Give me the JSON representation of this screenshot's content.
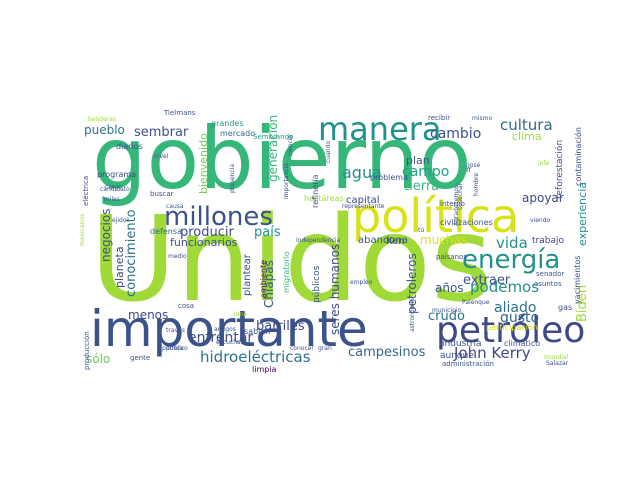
{
  "cloud": {
    "palette": [
      "#440154",
      "#482878",
      "#3e4989",
      "#31688e",
      "#26828e",
      "#1f9e89",
      "#35b779",
      "#6ece58",
      "#b5de2b",
      "#fde725"
    ],
    "words": [
      {
        "text": "Unidos",
        "color": "#a0da39"
      },
      {
        "text": "gobierno",
        "color": "#35b779"
      },
      {
        "text": "importante",
        "color": "#3b528b"
      },
      {
        "text": "política",
        "color": "#d8e219"
      },
      {
        "text": "petróleo",
        "color": "#3e4989"
      },
      {
        "text": "manera",
        "color": "#21918c"
      },
      {
        "text": "millones",
        "color": "#3b528b"
      },
      {
        "text": "energía",
        "color": "#21918c"
      },
      {
        "text": "hidroeléctricas",
        "color": "#2c728e"
      },
      {
        "text": "John Kerry",
        "color": "#3e4989"
      },
      {
        "text": "cultura",
        "color": "#31688e"
      },
      {
        "text": "cambio",
        "color": "#3b528b"
      },
      {
        "text": "agua",
        "color": "#21918c"
      },
      {
        "text": "campo",
        "color": "#1f9e89"
      },
      {
        "text": "tierra",
        "color": "#35b779"
      },
      {
        "text": "podemos",
        "color": "#21918c"
      },
      {
        "text": "aliado",
        "color": "#2c728e"
      },
      {
        "text": "vida",
        "color": "#21918c"
      },
      {
        "text": "gusto",
        "color": "#31688e"
      },
      {
        "text": "crudo",
        "color": "#2c728e"
      },
      {
        "text": "enfrentar",
        "color": "#3b528b"
      },
      {
        "text": "barriles",
        "color": "#3e4989"
      },
      {
        "text": "campesinos",
        "color": "#31688e"
      },
      {
        "text": "sembrar",
        "color": "#3b528b"
      },
      {
        "text": "pueblo",
        "color": "#2c728e"
      },
      {
        "text": "producir",
        "color": "#3e4989"
      },
      {
        "text": "país",
        "color": "#21918c"
      },
      {
        "text": "menos",
        "color": "#3e4989"
      },
      {
        "text": "sólo",
        "color": "#6ece58"
      },
      {
        "text": "funcionarios",
        "color": "#3b528b"
      },
      {
        "text": "negocios",
        "color": "#3b528b"
      },
      {
        "text": "conocimiento",
        "color": "#2c728e"
      },
      {
        "text": "generación",
        "color": "#35b779"
      },
      {
        "text": "bienvenido",
        "color": "#6ece58"
      },
      {
        "text": "seres humanos",
        "color": "#3e4989"
      },
      {
        "text": "petroleros",
        "color": "#3b528b"
      },
      {
        "text": "muchas",
        "color": "#d8e219"
      },
      {
        "text": "extraer",
        "color": "#3b528b"
      },
      {
        "text": "años",
        "color": "#3b528b"
      },
      {
        "text": "apoyar",
        "color": "#3e4989"
      },
      {
        "text": "Biden",
        "color": "#a0da39"
      },
      {
        "text": "experiencia",
        "color": "#21918c"
      },
      {
        "text": "Chiapas",
        "color": "#3b528b"
      },
      {
        "text": "planeta",
        "color": "#3e4989"
      },
      {
        "text": "clima",
        "color": "#a0da39"
      },
      {
        "text": "plan",
        "color": "#3b528b"
      },
      {
        "text": "abandona",
        "color": "#3b528b"
      },
      {
        "text": "capital",
        "color": "#3e4989"
      },
      {
        "text": "trabajo",
        "color": "#3e4989"
      },
      {
        "text": "Ken",
        "color": "#3e4989"
      },
      {
        "text": "plantear",
        "color": "#3e4989"
      },
      {
        "text": "ambiente",
        "color": "#440154"
      },
      {
        "text": "públicos",
        "color": "#3b528b"
      },
      {
        "text": "mercado",
        "color": "#31688e"
      },
      {
        "text": "defensa",
        "color": "#31688e"
      },
      {
        "text": "diarios",
        "color": "#3b528b"
      },
      {
        "text": "grandes",
        "color": "#21918c"
      },
      {
        "text": "Tielmans",
        "color": "#3b528b"
      },
      {
        "text": "Sembrando",
        "color": "#1f9e89"
      },
      {
        "text": "hectáreas",
        "color": "#a0da39"
      },
      {
        "text": "migratorio",
        "color": "#35b779"
      },
      {
        "text": "reforestación",
        "color": "#3b528b"
      },
      {
        "text": "contaminación",
        "color": "#3e4989"
      },
      {
        "text": "industria",
        "color": "#3b528b"
      },
      {
        "text": "aunque",
        "color": "#3e4989"
      },
      {
        "text": "climático",
        "color": "#3b528b"
      },
      {
        "text": "senador",
        "color": "#3b528b"
      },
      {
        "text": "yacimientos",
        "color": "#3b528b"
      },
      {
        "text": "participación",
        "color": "#d8e219"
      },
      {
        "text": "Palenque",
        "color": "#3e4989"
      },
      {
        "text": "administración",
        "color": "#3b528b"
      },
      {
        "text": "mundial",
        "color": "#a0da39"
      },
      {
        "text": "Salazar",
        "color": "#3b528b"
      },
      {
        "text": "civilizaciones",
        "color": "#3b528b"
      },
      {
        "text": "paisanos",
        "color": "#3b528b"
      },
      {
        "text": "gente",
        "color": "#3b528b"
      },
      {
        "text": "limpia",
        "color": "#440154"
      },
      {
        "text": "amigos",
        "color": "#3b528b"
      },
      {
        "text": "producción",
        "color": "#3b528b"
      },
      {
        "text": "empleo",
        "color": "#3b528b"
      },
      {
        "text": "sabían",
        "color": "#3b528b"
      },
      {
        "text": "cosa",
        "color": "#3b528b"
      },
      {
        "text": "escuchar",
        "color": "#3b528b"
      },
      {
        "text": "representante",
        "color": "#3b528b"
      },
      {
        "text": "problema",
        "color": "#3b528b"
      },
      {
        "text": "interno",
        "color": "#3b528b"
      },
      {
        "text": "mismo",
        "color": "#3b528b"
      },
      {
        "text": "recibir",
        "color": "#3b528b"
      },
      {
        "text": "José",
        "color": "#3b528b"
      },
      {
        "text": "presencia",
        "color": "#3b528b"
      },
      {
        "text": "programa",
        "color": "#3e4989"
      },
      {
        "text": "eléctrica",
        "color": "#3e4989"
      },
      {
        "text": "banderas",
        "color": "#a0da39"
      },
      {
        "text": "candidato",
        "color": "#3b528b"
      },
      {
        "text": "independencia",
        "color": "#3b528b"
      },
      {
        "text": "municipio",
        "color": "#3b528b"
      },
      {
        "text": "cuando",
        "color": "#3b528b"
      },
      {
        "text": "refinería",
        "color": "#3b528b"
      },
      {
        "text": "ciencia",
        "color": "#3b528b"
      },
      {
        "text": "importancia",
        "color": "#3b528b"
      },
      {
        "text": "público",
        "color": "#3b528b"
      },
      {
        "text": "medio",
        "color": "#3b528b"
      },
      {
        "text": "través",
        "color": "#3b528b"
      },
      {
        "text": "pública",
        "color": "#3b528b"
      },
      {
        "text": "miles",
        "color": "#3b528b"
      },
      {
        "text": "cargo",
        "color": "#3b528b"
      },
      {
        "text": "Agradecemos",
        "color": "#3b528b"
      },
      {
        "text": "hombre",
        "color": "#3b528b"
      },
      {
        "text": "cosechar",
        "color": "#3b528b"
      },
      {
        "text": "viendo",
        "color": "#3b528b"
      },
      {
        "text": "jefe",
        "color": "#a0da39"
      },
      {
        "text": "asuntos",
        "color": "#3b528b"
      },
      {
        "text": "mexicanos",
        "color": "#a0da39"
      },
      {
        "text": "luna",
        "color": "#a0da39"
      },
      {
        "text": "astronomía",
        "color": "#3b528b"
      },
      {
        "text": "conocer",
        "color": "#3b528b"
      },
      {
        "text": "gran",
        "color": "#3b528b"
      },
      {
        "text": "nivel",
        "color": "#3b528b"
      },
      {
        "text": "buscar",
        "color": "#3b528b"
      },
      {
        "text": "ejido",
        "color": "#3b528b"
      },
      {
        "text": "causa",
        "color": "#3b528b"
      },
      {
        "text": "gas",
        "color": "#3b528b"
      },
      {
        "text": "tú",
        "color": "#3b528b"
      },
      {
        "text": "ir",
        "color": "#3b528b"
      }
    ]
  }
}
